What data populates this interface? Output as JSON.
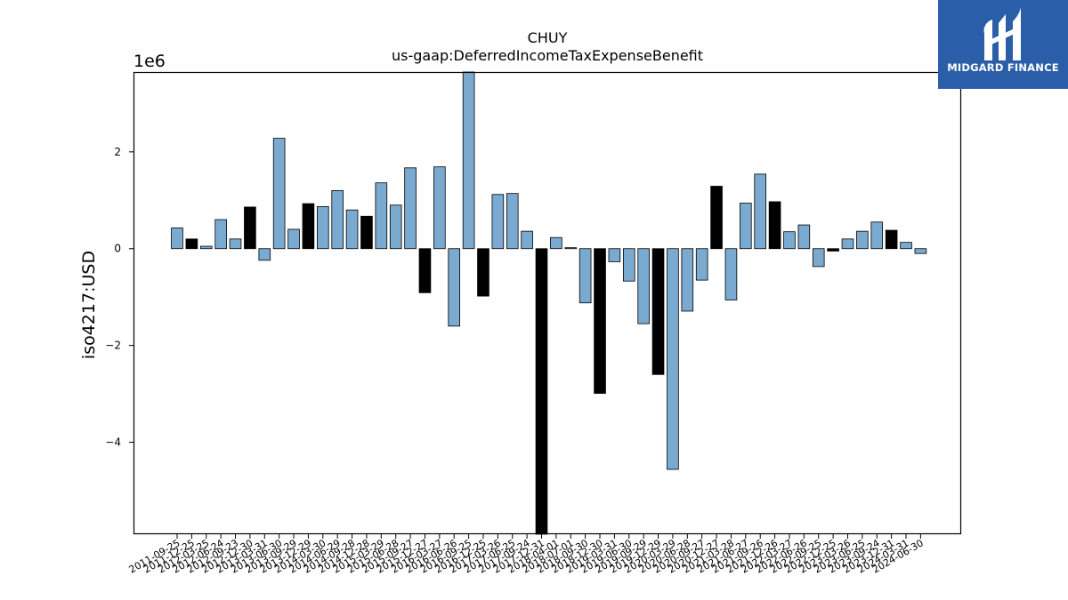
{
  "chart_data": {
    "type": "bar",
    "title": "CHUY",
    "subtitle": "us-gaap:DeferredIncomeTaxExpenseBenefit",
    "ylabel": "iso4217:USD",
    "y_multiplier_label": "1e6",
    "ylim": [
      -5.9,
      3.65
    ],
    "yticks": [
      -4,
      -2,
      0,
      2
    ],
    "ytick_labels": [
      "−4",
      "−2",
      "0",
      "2"
    ],
    "grid": false,
    "colors": {
      "primary": "#7aaad0",
      "highlight": "#000000"
    },
    "categories": [
      "2011-09-25",
      "2011-12-25",
      "2012-03-25",
      "2012-06-24",
      "2012-09-23",
      "2012-12-30",
      "2013-03-31",
      "2013-06-30",
      "2013-09-29",
      "2013-12-29",
      "2014-03-30",
      "2014-06-29",
      "2014-09-28",
      "2014-12-28",
      "2015-03-29",
      "2015-06-28",
      "2015-09-27",
      "2015-12-27",
      "2016-03-27",
      "2016-06-26",
      "2016-09-25",
      "2016-12-25",
      "2017-03-26",
      "2017-06-25",
      "2017-09-24",
      "2017-12-31",
      "2018-04-01",
      "2018-07-01",
      "2018-09-30",
      "2018-12-30",
      "2019-03-31",
      "2019-06-30",
      "2019-09-29",
      "2019-12-29",
      "2020-03-29",
      "2020-06-28",
      "2020-09-27",
      "2020-12-27",
      "2021-03-28",
      "2021-06-27",
      "2021-09-26",
      "2021-12-26",
      "2022-03-27",
      "2022-06-26",
      "2022-09-25",
      "2022-12-25",
      "2023-03-26",
      "2023-06-25",
      "2023-09-24",
      "2023-12-31",
      "2024-03-31",
      "2024-06-30"
    ],
    "values": [
      0.43,
      0.2,
      0.05,
      0.6,
      0.2,
      0.86,
      -0.24,
      2.28,
      0.4,
      0.93,
      0.87,
      1.2,
      0.8,
      0.67,
      1.36,
      0.9,
      1.67,
      -0.91,
      1.69,
      -1.6,
      3.65,
      -0.98,
      1.12,
      1.14,
      0.36,
      -5.9,
      0.23,
      0.02,
      -1.12,
      -2.99,
      -0.27,
      -0.67,
      -1.55,
      -2.6,
      -4.56,
      -1.29,
      -0.65,
      1.29,
      -1.06,
      0.94,
      1.54,
      0.97,
      0.35,
      0.49,
      -0.37,
      -0.05,
      0.2,
      0.36,
      0.55,
      0.38,
      0.13,
      -0.1
    ],
    "highlight": [
      false,
      true,
      false,
      false,
      false,
      true,
      false,
      false,
      false,
      true,
      false,
      false,
      false,
      true,
      false,
      false,
      false,
      true,
      false,
      false,
      false,
      true,
      false,
      false,
      false,
      true,
      false,
      false,
      false,
      true,
      false,
      false,
      false,
      true,
      false,
      false,
      false,
      true,
      false,
      false,
      false,
      true,
      false,
      false,
      false,
      true,
      false,
      false,
      false,
      true,
      false,
      false
    ]
  },
  "logo": {
    "text": "MIDGARD FINANCE"
  }
}
